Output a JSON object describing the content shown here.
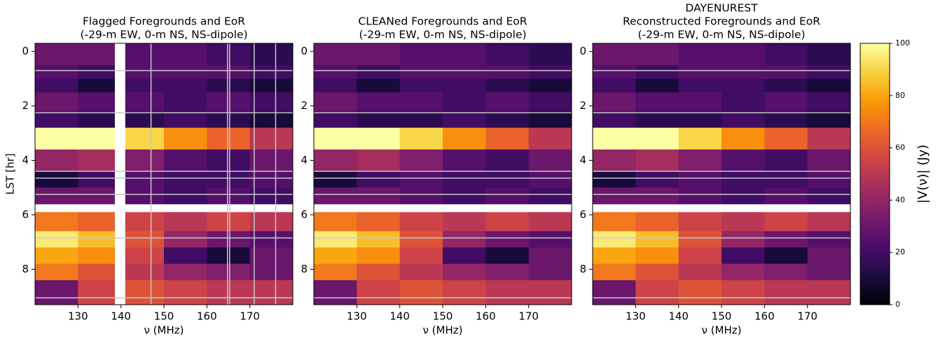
{
  "chart_data": [
    {
      "type": "heatmap",
      "title": [
        "Flagged Foregrounds and EoR",
        "(-29-m EW, 0-m NS, NS-dipole)"
      ],
      "x_label": "ν (MHz)",
      "y_label": "LST [hr]",
      "xbins": [
        120,
        130,
        138.5,
        141,
        150,
        160,
        170,
        180
      ],
      "ybins": [
        -0.3,
        0.5,
        1.0,
        1.5,
        2.2,
        2.8,
        3.6,
        4.4,
        5.0,
        5.6,
        5.9,
        6.6,
        7.2,
        7.8,
        8.4,
        9.3
      ],
      "values": [
        [
          30,
          30,
          null,
          25,
          25,
          20,
          15
        ],
        [
          25,
          20,
          null,
          25,
          25,
          25,
          20
        ],
        [
          20,
          10,
          null,
          20,
          20,
          15,
          10
        ],
        [
          30,
          25,
          null,
          25,
          20,
          25,
          20
        ],
        [
          20,
          15,
          null,
          15,
          20,
          15,
          10
        ],
        [
          100,
          100,
          null,
          90,
          75,
          65,
          50
        ],
        [
          40,
          45,
          null,
          35,
          25,
          20,
          30
        ],
        [
          10,
          20,
          null,
          25,
          20,
          20,
          25
        ],
        [
          30,
          30,
          null,
          25,
          20,
          25,
          20
        ],
        [
          null,
          null,
          null,
          null,
          null,
          null,
          null
        ],
        [
          70,
          65,
          null,
          55,
          50,
          55,
          50
        ],
        [
          95,
          85,
          null,
          60,
          40,
          30,
          25
        ],
        [
          80,
          75,
          null,
          55,
          20,
          10,
          30
        ],
        [
          70,
          60,
          null,
          50,
          40,
          35,
          30
        ],
        [
          30,
          55,
          null,
          60,
          55,
          50,
          50
        ]
      ],
      "hlines": [
        0.7,
        2.25,
        4.4,
        4.65,
        5.25,
        6.85,
        9.05
      ],
      "vlines": [
        147,
        164.8,
        165.3,
        171,
        176
      ],
      "xlim": [
        120,
        180
      ],
      "xticks": [
        130,
        140,
        150,
        160,
        170
      ],
      "ylim": [
        -0.3,
        9.3
      ],
      "yticks": [
        0,
        2,
        4,
        6,
        8
      ]
    },
    {
      "type": "heatmap",
      "title": [
        "CLEANed Foregrounds and EoR",
        "(-29-m EW, 0-m NS, NS-dipole)"
      ],
      "x_label": "ν (MHz)",
      "xbins": [
        120,
        130,
        140,
        150,
        160,
        170,
        180
      ],
      "ybins": [
        -0.3,
        0.5,
        1.0,
        1.5,
        2.2,
        2.8,
        3.6,
        4.4,
        5.0,
        5.6,
        5.9,
        6.6,
        7.2,
        7.8,
        8.4,
        9.3
      ],
      "values": [
        [
          30,
          30,
          25,
          25,
          20,
          15
        ],
        [
          25,
          20,
          25,
          25,
          25,
          20
        ],
        [
          20,
          10,
          20,
          20,
          15,
          10
        ],
        [
          30,
          25,
          25,
          20,
          25,
          20
        ],
        [
          20,
          15,
          15,
          20,
          15,
          10
        ],
        [
          100,
          100,
          90,
          75,
          65,
          50
        ],
        [
          40,
          45,
          35,
          25,
          20,
          30
        ],
        [
          10,
          20,
          25,
          20,
          20,
          25
        ],
        [
          30,
          30,
          25,
          20,
          25,
          20
        ],
        [
          null,
          null,
          null,
          null,
          null,
          null
        ],
        [
          70,
          65,
          55,
          50,
          55,
          50
        ],
        [
          95,
          85,
          60,
          40,
          30,
          25
        ],
        [
          80,
          75,
          55,
          20,
          10,
          30
        ],
        [
          70,
          60,
          50,
          40,
          35,
          30
        ],
        [
          30,
          55,
          60,
          55,
          50,
          50
        ]
      ],
      "hlines": [
        0.7,
        2.25,
        4.4,
        4.65,
        5.25,
        6.85,
        9.05
      ],
      "vlines": [],
      "xlim": [
        120,
        180
      ],
      "xticks": [
        130,
        140,
        150,
        160,
        170
      ],
      "ylim": [
        -0.3,
        9.3
      ],
      "yticks": [
        0,
        2,
        4,
        6,
        8
      ]
    },
    {
      "type": "heatmap",
      "title": [
        "DAYENUREST",
        "Reconstructed Foregrounds and EoR",
        "(-29-m EW, 0-m NS, NS-dipole)"
      ],
      "x_label": "ν (MHz)",
      "xbins": [
        120,
        130,
        140,
        150,
        160,
        170,
        180
      ],
      "ybins": [
        -0.3,
        0.5,
        1.0,
        1.5,
        2.2,
        2.8,
        3.6,
        4.4,
        5.0,
        5.6,
        5.9,
        6.6,
        7.2,
        7.8,
        8.4,
        9.3
      ],
      "values": [
        [
          30,
          30,
          25,
          25,
          20,
          15
        ],
        [
          25,
          20,
          25,
          25,
          25,
          20
        ],
        [
          20,
          10,
          20,
          20,
          15,
          10
        ],
        [
          30,
          25,
          25,
          20,
          25,
          20
        ],
        [
          20,
          15,
          15,
          20,
          15,
          10
        ],
        [
          100,
          100,
          90,
          75,
          65,
          50
        ],
        [
          40,
          45,
          35,
          25,
          20,
          30
        ],
        [
          10,
          20,
          25,
          20,
          20,
          25
        ],
        [
          30,
          30,
          25,
          20,
          25,
          20
        ],
        [
          null,
          null,
          null,
          null,
          null,
          null
        ],
        [
          70,
          65,
          55,
          50,
          55,
          50
        ],
        [
          95,
          85,
          60,
          40,
          30,
          25
        ],
        [
          80,
          75,
          55,
          20,
          10,
          30
        ],
        [
          70,
          60,
          50,
          40,
          35,
          30
        ],
        [
          30,
          55,
          60,
          55,
          50,
          50
        ]
      ],
      "hlines": [
        0.7,
        2.25,
        4.4,
        4.65,
        5.25,
        6.85,
        9.05
      ],
      "vlines": [],
      "xlim": [
        120,
        180
      ],
      "xticks": [
        130,
        140,
        150,
        160,
        170
      ],
      "ylim": [
        -0.3,
        9.3
      ],
      "yticks": [
        0,
        2,
        4,
        6,
        8
      ]
    }
  ],
  "colorbar": {
    "label": "|V(ν)| (Jy)",
    "lim": [
      0,
      100
    ],
    "ticks": [
      0,
      20,
      40,
      60,
      80,
      100
    ],
    "colors": [
      "#000004",
      "#1b0c41",
      "#4a0c6b",
      "#781c6d",
      "#a52c60",
      "#cf4446",
      "#ed6925",
      "#fb9b06",
      "#f7d13d",
      "#fcffa4"
    ]
  }
}
